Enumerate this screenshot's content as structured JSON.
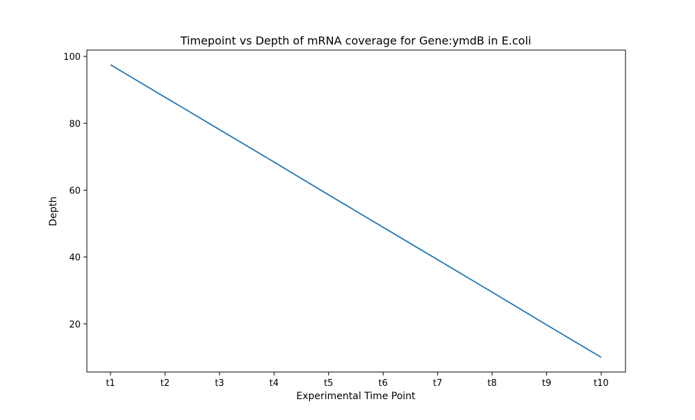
{
  "chart_data": {
    "type": "line",
    "title": "Timepoint vs Depth of mRNA coverage for Gene:ymdB in E.coli",
    "xlabel": "Experimental Time Point",
    "ylabel": "Depth",
    "categories": [
      "t1",
      "t2",
      "t3",
      "t4",
      "t5",
      "t6",
      "t7",
      "t8",
      "t9",
      "t10"
    ],
    "series": [
      {
        "values": [
          97.5,
          87.8,
          78.1,
          68.4,
          58.6,
          48.9,
          39.2,
          29.5,
          19.7,
          10.0
        ],
        "color": "#1f77b4"
      }
    ],
    "ylim": [
      5.6,
      101.9
    ],
    "yticks": [
      20,
      40,
      60,
      80,
      100
    ],
    "grid": false,
    "legend": "none"
  }
}
